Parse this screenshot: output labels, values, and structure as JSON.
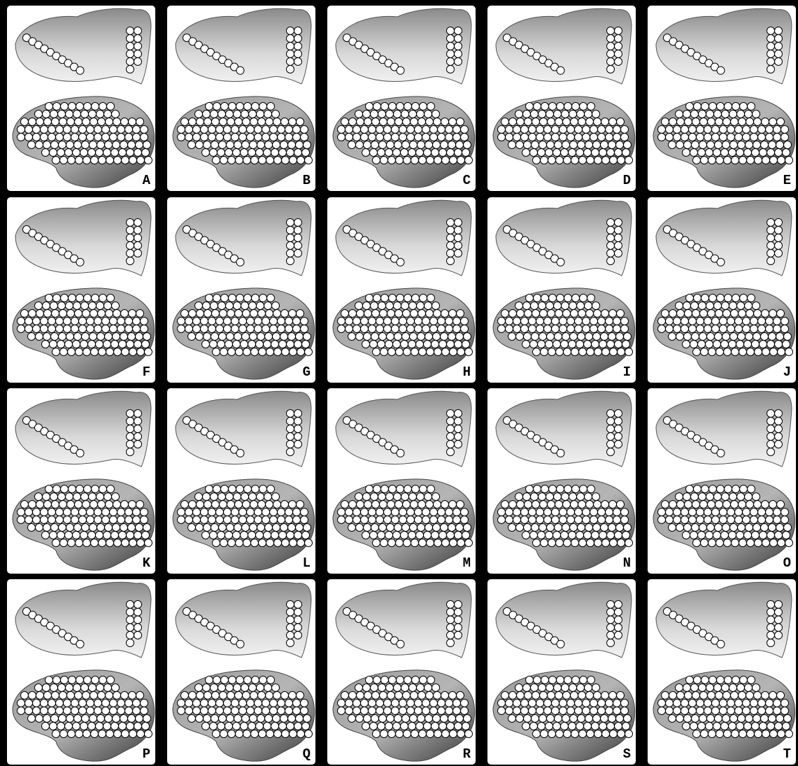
{
  "panels": [
    {
      "label": "A"
    },
    {
      "label": "B"
    },
    {
      "label": "C"
    },
    {
      "label": "D"
    },
    {
      "label": "E"
    },
    {
      "label": "F"
    },
    {
      "label": "G"
    },
    {
      "label": "H"
    },
    {
      "label": "I"
    },
    {
      "label": "J"
    },
    {
      "label": "K"
    },
    {
      "label": "L"
    },
    {
      "label": "M"
    },
    {
      "label": "N"
    },
    {
      "label": "O"
    },
    {
      "label": "P"
    },
    {
      "label": "Q"
    },
    {
      "label": "R"
    },
    {
      "label": "S"
    },
    {
      "label": "T"
    }
  ]
}
